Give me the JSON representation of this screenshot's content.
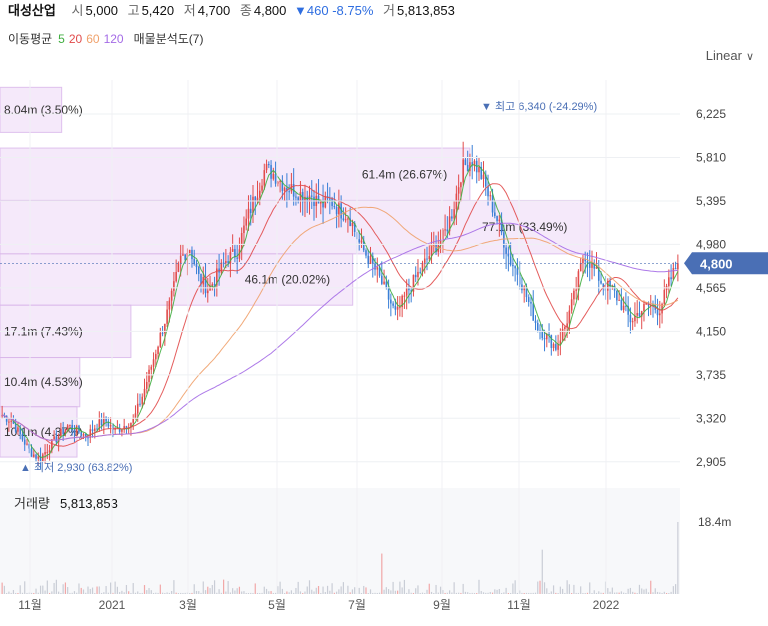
{
  "header": {
    "name": "대성산업",
    "open_label": "시",
    "open": "5,000",
    "high_label": "고",
    "high": "5,420",
    "low_label": "저",
    "low": "4,700",
    "close_label": "종",
    "close": "4,800",
    "change": "▼460 -8.75%",
    "volume_label": "거",
    "volume": "5,813,853"
  },
  "ma_legend": {
    "label": "이동평균",
    "p5": "5",
    "p20": "20",
    "p60": "60",
    "p120": "120",
    "volume_profile": "매물분석도(7)"
  },
  "scale_selector": {
    "label": "Linear"
  },
  "colors": {
    "up": "#e14b4b",
    "down": "#3a7fd6",
    "ma5": "#3fae3f",
    "ma20": "#e14b4b",
    "ma60": "#f0a16b",
    "ma120": "#a46be6",
    "profile_fill": "#f4e6fa",
    "profile_stroke": "#d9b6ea",
    "price_tag": "#4a6fb5",
    "volume_bar": "#c9cdd6"
  },
  "chart_data": {
    "type": "candlestick",
    "price_axis": {
      "ticks": [
        "6,225",
        "5,810",
        "5,395",
        "4,980",
        "4,565",
        "4,150",
        "3,735",
        "3,320",
        "2,905"
      ],
      "range": [
        2750,
        6550
      ]
    },
    "time_axis": {
      "labels": [
        "11월",
        "2021",
        "3월",
        "5월",
        "7월",
        "9월",
        "11월",
        "2022"
      ]
    },
    "current_price": {
      "value": 4800,
      "label": "4,800"
    },
    "high_marker": {
      "label": "▼ 최고 6,340 (-24.29%)",
      "value": 6340
    },
    "low_marker": {
      "label": "▲ 최저 2,930 (63.82%)",
      "value": 2930
    },
    "volume_profile": [
      {
        "label": "8.04m (3.50%)",
        "from": 6050,
        "to": 6480,
        "share": 3.5
      },
      {
        "label": "61.4m (26.67%)",
        "from": 5400,
        "to": 5900,
        "share": 26.67
      },
      {
        "label": "77.1m (33.49%)",
        "from": 4890,
        "to": 5400,
        "share": 33.49
      },
      {
        "label": "46.1m (20.02%)",
        "from": 4400,
        "to": 4890,
        "share": 20.02
      },
      {
        "label": "17.1m (7.43%)",
        "from": 3900,
        "to": 4400,
        "share": 7.43
      },
      {
        "label": "10.4m (4.53%)",
        "from": 3430,
        "to": 3900,
        "share": 4.53
      },
      {
        "label": "10.1m (4.37%)",
        "from": 2950,
        "to": 3430,
        "share": 4.37
      }
    ],
    "volume_panel": {
      "label": "거래량",
      "value": "5,813,853",
      "axis_label": "18.4m",
      "max": 18400000
    },
    "price_path": [
      3350,
      3300,
      3150,
      3000,
      2930,
      3050,
      3150,
      3250,
      3200,
      3150,
      3250,
      3300,
      3200,
      3250,
      3300,
      3550,
      3850,
      4150,
      4450,
      4850,
      4950,
      4650,
      4550,
      4700,
      4850,
      4900,
      5200,
      5450,
      5700,
      5650,
      5550,
      5500,
      5450,
      5450,
      5350,
      5400,
      5300,
      5250,
      5000,
      4850,
      4700,
      4500,
      4300,
      4500,
      4650,
      4800,
      4950,
      5050,
      5300,
      5700,
      5800,
      5650,
      5400,
      5150,
      4850,
      4700,
      4450,
      4200,
      4100,
      4000,
      4200,
      4500,
      4900,
      4750,
      4600,
      4550,
      4400,
      4250,
      4350,
      4400,
      4350,
      4600,
      4800
    ]
  }
}
